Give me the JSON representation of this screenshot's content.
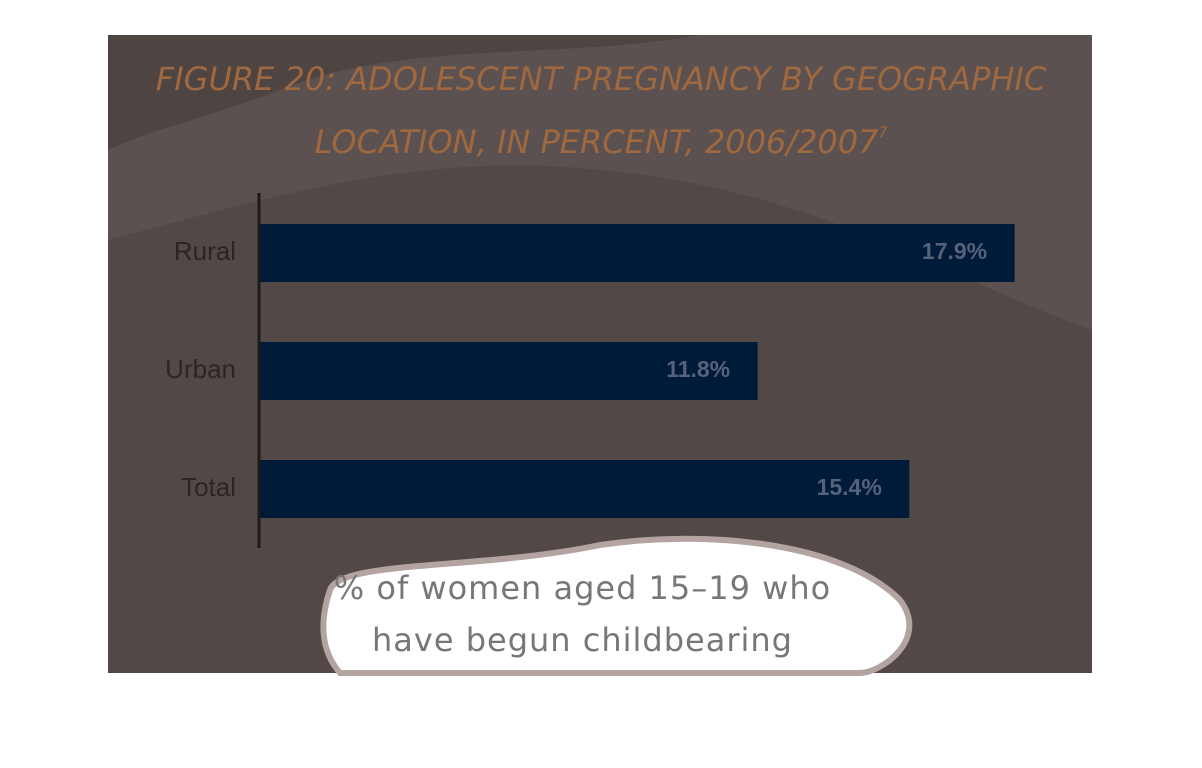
{
  "chart_data": {
    "type": "bar",
    "orientation": "horizontal",
    "title": "FIGURE 20: ADOLESCENT PREGNANCY BY GEOGRAPHIC LOCATION, IN PERCENT, 2006/2007",
    "title_note": "7",
    "x_label": "% of women aged 15–19 who have begun childbearing",
    "categories": [
      "Rural",
      "Urban",
      "Total"
    ],
    "values": [
      17.9,
      11.8,
      15.4
    ],
    "value_labels": [
      "17.9%",
      "11.8%",
      "15.4%"
    ],
    "color": "#001a3a"
  }
}
